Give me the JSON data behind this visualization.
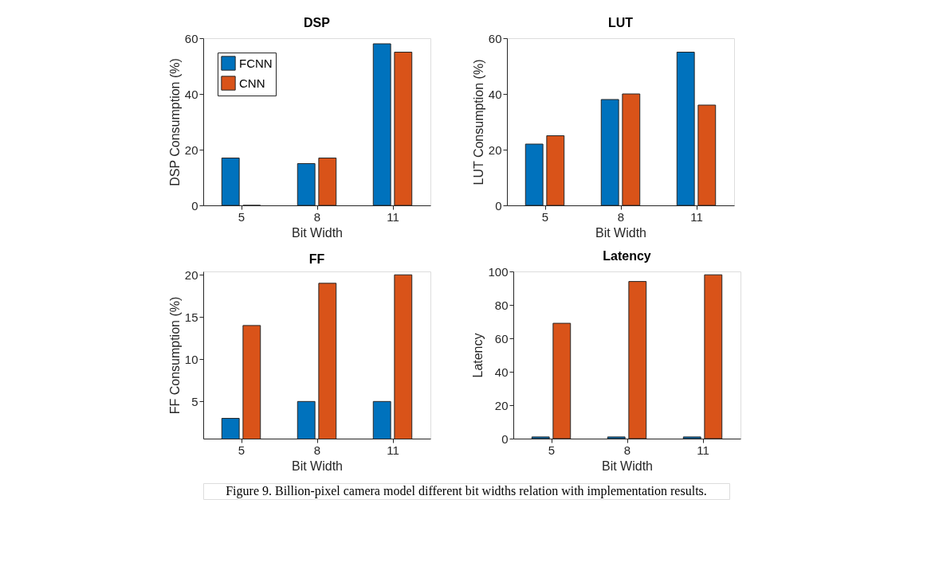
{
  "chart_data": [
    {
      "type": "bar",
      "title": "DSP",
      "xlabel": "Bit Width",
      "ylabel": "DSP Consumption (%)",
      "categories": [
        "5",
        "8",
        "11"
      ],
      "series": [
        {
          "name": "FCNN",
          "color": "#0072bd",
          "values": [
            17,
            15,
            58
          ]
        },
        {
          "name": "CNN",
          "color": "#d95319",
          "values": [
            0,
            17,
            55
          ]
        }
      ],
      "ylim": [
        0,
        60
      ],
      "yticks": [
        0,
        20,
        40,
        60
      ],
      "legend": "top left",
      "grid": false
    },
    {
      "type": "bar",
      "title": "LUT",
      "xlabel": "Bit Width",
      "ylabel": "LUT  Consumption (%)",
      "categories": [
        "5",
        "8",
        "11"
      ],
      "series": [
        {
          "name": "FCNN",
          "color": "#0072bd",
          "values": [
            22,
            38,
            55
          ]
        },
        {
          "name": "CNN",
          "color": "#d95319",
          "values": [
            25,
            40,
            36
          ]
        }
      ],
      "ylim": [
        0,
        60
      ],
      "yticks": [
        0,
        20,
        40,
        60
      ],
      "legend": "top left",
      "grid": false
    },
    {
      "type": "bar",
      "title": "FF",
      "xlabel": "Bit Width",
      "ylabel": "FF Consumption (%)",
      "categories": [
        "5",
        "8",
        "11"
      ],
      "series": [
        {
          "name": "FCNN",
          "color": "#0072bd",
          "values": [
            3,
            5,
            5
          ]
        },
        {
          "name": "CNN",
          "color": "#d95319",
          "values": [
            14,
            19,
            20
          ]
        }
      ],
      "ylim": [
        0.6,
        20.4
      ],
      "yticks": [
        5,
        10,
        15,
        20
      ],
      "legend": "top left",
      "grid": false
    },
    {
      "type": "bar",
      "title": "Latency",
      "xlabel": "Bit Width",
      "ylabel": "Latency",
      "categories": [
        "5",
        "8",
        "11"
      ],
      "series": [
        {
          "name": "FCNN",
          "color": "#0072bd",
          "values": [
            1,
            1,
            1
          ]
        },
        {
          "name": "CNN",
          "color": "#d95319",
          "values": [
            69,
            94,
            98
          ]
        }
      ],
      "ylim": [
        0,
        100
      ],
      "yticks": [
        0,
        20,
        40,
        60,
        80,
        100
      ],
      "legend": "top left",
      "grid": false,
      "annotations": [
        "Figure 9. Billion-pixel camera model different bit widths relation with implementation results."
      ]
    }
  ]
}
